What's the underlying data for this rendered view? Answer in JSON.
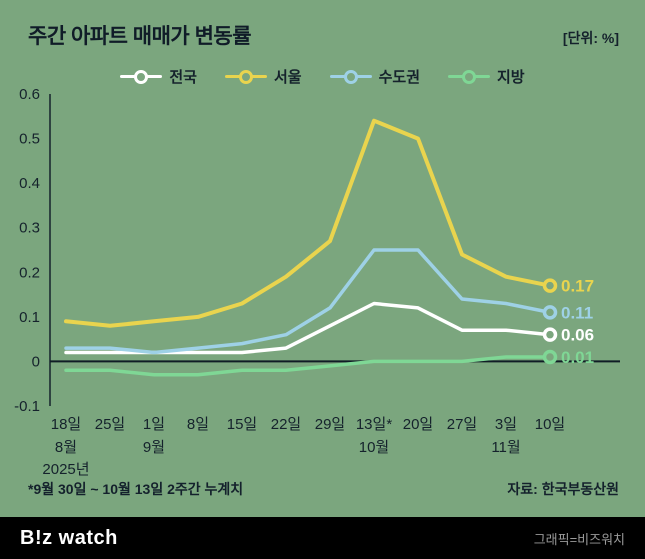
{
  "header": {
    "title": "주간 아파트 매매가 변동률",
    "unit": "[단위: %]"
  },
  "legend": [
    {
      "label": "전국",
      "color": "#FFFFFF"
    },
    {
      "label": "서울",
      "color": "#E9D44E"
    },
    {
      "label": "수도권",
      "color": "#9ED1E6"
    },
    {
      "label": "지방",
      "color": "#7FD795"
    }
  ],
  "chart_data": {
    "type": "line",
    "categories": [
      "18일",
      "25일",
      "1일",
      "8일",
      "15일",
      "22일",
      "29일",
      "13일*",
      "20일",
      "27일",
      "3일",
      "10일"
    ],
    "series": [
      {
        "name": "전국",
        "color": "#FFFFFF",
        "values": [
          0.02,
          0.02,
          0.02,
          0.02,
          0.02,
          0.03,
          0.08,
          0.13,
          0.12,
          0.07,
          0.07,
          0.06
        ],
        "end_label": "0.06"
      },
      {
        "name": "서울",
        "color": "#E9D44E",
        "values": [
          0.09,
          0.08,
          0.09,
          0.1,
          0.13,
          0.19,
          0.27,
          0.54,
          0.5,
          0.24,
          0.19,
          0.17
        ],
        "end_label": "0.17"
      },
      {
        "name": "수도권",
        "color": "#9ED1E6",
        "values": [
          0.03,
          0.03,
          0.02,
          0.03,
          0.04,
          0.06,
          0.12,
          0.25,
          0.25,
          0.14,
          0.13,
          0.11
        ],
        "end_label": "0.11"
      },
      {
        "name": "지방",
        "color": "#7FD795",
        "values": [
          -0.02,
          -0.02,
          -0.03,
          -0.03,
          -0.02,
          -0.02,
          -0.01,
          0.0,
          0.0,
          0.0,
          0.01,
          0.01
        ],
        "end_label": "0.01"
      }
    ],
    "ylim": [
      -0.1,
      0.6
    ],
    "yticks": [
      0.6,
      0.5,
      0.4,
      0.3,
      0.2,
      0.1,
      0,
      -0.1
    ],
    "month_labels": [
      {
        "index": 0,
        "label": "8월"
      },
      {
        "index": 2,
        "label": "9월"
      },
      {
        "index": 7,
        "label": "10월"
      },
      {
        "index": 10,
        "label": "11월"
      }
    ],
    "year_label": {
      "index": 0,
      "label": "2025년"
    },
    "title": "주간 아파트 매매가 변동률",
    "xlabel": "",
    "ylabel": "",
    "grid": false,
    "legend_position": "top"
  },
  "footnote": "*9월 30일 ~ 10월 13일 2주간 누계치",
  "source": "자료: 한국부동산원",
  "footer": {
    "logo": "B!z watch",
    "credit": "그래픽=비즈워치"
  }
}
